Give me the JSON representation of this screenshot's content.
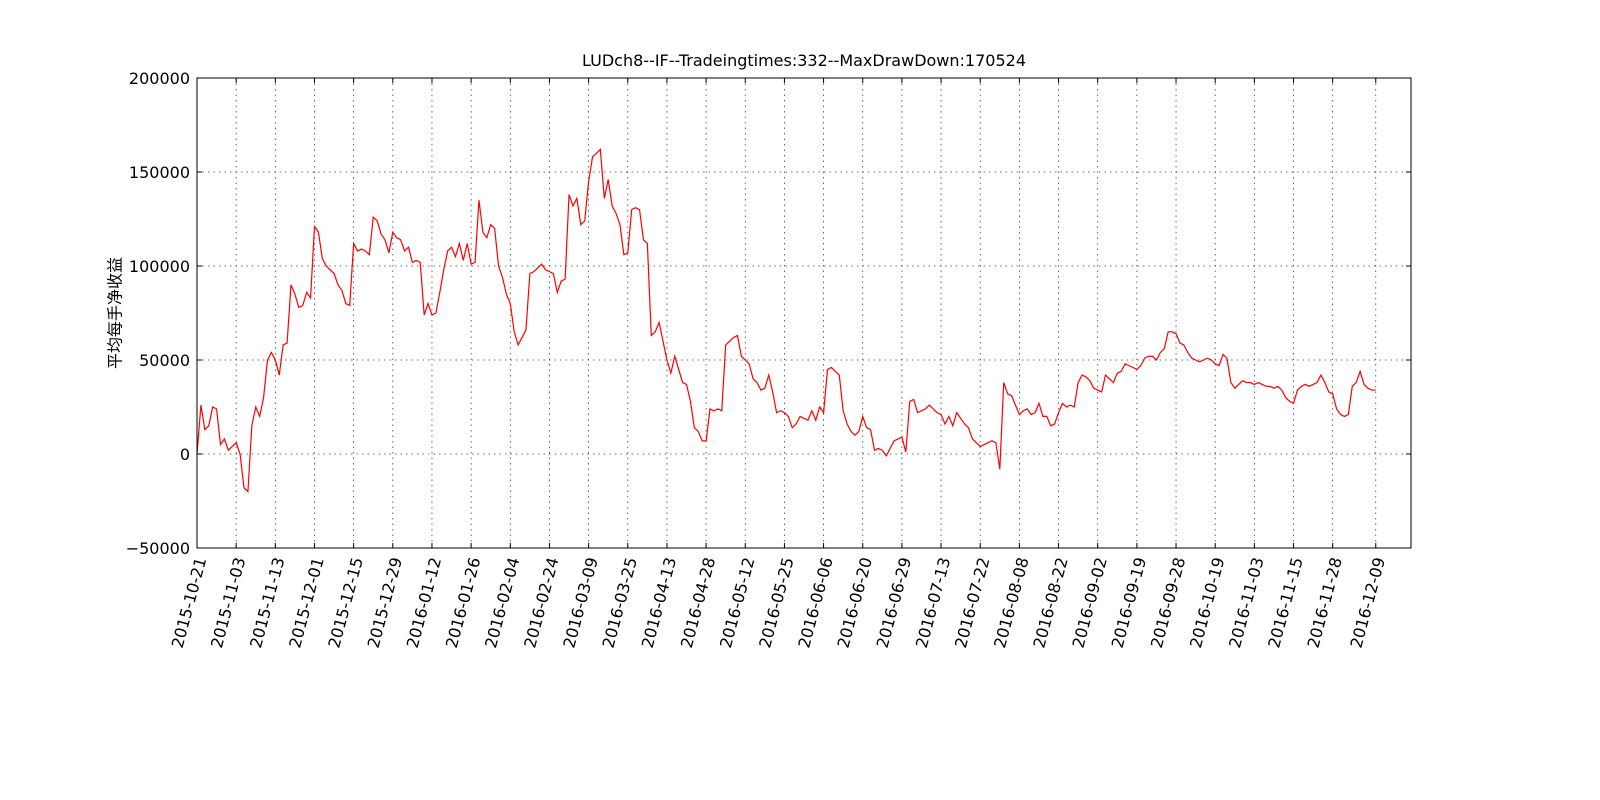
{
  "chart_data": {
    "type": "line",
    "title": "LUDch8--IF--Tradeingtimes:332--MaxDrawDown:170524",
    "y_label": "平均每手净收益",
    "xlim": [
      0,
      310
    ],
    "ylim": [
      -50000,
      200000
    ],
    "yticks": [
      {
        "value": -50000,
        "label": "−50000"
      },
      0,
      50000,
      100000,
      150000,
      200000
    ],
    "xticks": [
      {
        "value": 0,
        "label": "2015-10-21"
      },
      {
        "value": 10,
        "label": "2015-11-03"
      },
      {
        "value": 20,
        "label": "2015-11-13"
      },
      {
        "value": 30,
        "label": "2015-12-01"
      },
      {
        "value": 40,
        "label": "2015-12-15"
      },
      {
        "value": 50,
        "label": "2015-12-29"
      },
      {
        "value": 60,
        "label": "2016-01-12"
      },
      {
        "value": 70,
        "label": "2016-01-26"
      },
      {
        "value": 80,
        "label": "2016-02-04"
      },
      {
        "value": 90,
        "label": "2016-02-24"
      },
      {
        "value": 100,
        "label": "2016-03-09"
      },
      {
        "value": 110,
        "label": "2016-03-25"
      },
      {
        "value": 120,
        "label": "2016-04-13"
      },
      {
        "value": 130,
        "label": "2016-04-28"
      },
      {
        "value": 140,
        "label": "2016-05-12"
      },
      {
        "value": 150,
        "label": "2016-05-25"
      },
      {
        "value": 160,
        "label": "2016-06-06"
      },
      {
        "value": 170,
        "label": "2016-06-20"
      },
      {
        "value": 180,
        "label": "2016-06-29"
      },
      {
        "value": 190,
        "label": "2016-07-13"
      },
      {
        "value": 200,
        "label": "2016-07-22"
      },
      {
        "value": 210,
        "label": "2016-08-08"
      },
      {
        "value": 220,
        "label": "2016-08-22"
      },
      {
        "value": 230,
        "label": "2016-09-02"
      },
      {
        "value": 240,
        "label": "2016-09-19"
      },
      {
        "value": 250,
        "label": "2016-09-28"
      },
      {
        "value": 260,
        "label": "2016-10-19"
      },
      {
        "value": 270,
        "label": "2016-11-03"
      },
      {
        "value": 280,
        "label": "2016-11-15"
      },
      {
        "value": 290,
        "label": "2016-11-28"
      },
      {
        "value": 301,
        "label": "2016-12-09"
      }
    ],
    "grid": true,
    "color": "#ff0000",
    "values": [
      0,
      26000,
      13000,
      15000,
      25000,
      24000,
      5000,
      8000,
      2000,
      4000,
      6000,
      0,
      -18000,
      -20000,
      15000,
      25000,
      20000,
      30000,
      50000,
      54000,
      50000,
      42000,
      58000,
      59000,
      90000,
      85000,
      78000,
      79000,
      86000,
      83000,
      121000,
      118000,
      104000,
      100000,
      98000,
      96000,
      90000,
      87000,
      80000,
      79000,
      112000,
      108000,
      109000,
      108000,
      106000,
      126000,
      124000,
      117000,
      114000,
      107000,
      118000,
      115000,
      114000,
      108000,
      110000,
      102000,
      103000,
      102000,
      74000,
      80000,
      74000,
      75000,
      86000,
      98000,
      108000,
      110000,
      105000,
      112000,
      103000,
      112000,
      101000,
      102000,
      135000,
      118000,
      115000,
      122000,
      120000,
      100000,
      94000,
      85000,
      80000,
      65000,
      58000,
      62000,
      66000,
      96000,
      97000,
      99000,
      101000,
      98000,
      97000,
      96000,
      86000,
      92000,
      93000,
      138000,
      132000,
      136000,
      122000,
      124000,
      145000,
      158000,
      160000,
      162000,
      136000,
      146000,
      132000,
      128000,
      122000,
      106000,
      107000,
      130000,
      131000,
      130000,
      114000,
      112000,
      63000,
      65000,
      70000,
      60000,
      50000,
      43000,
      52000,
      45000,
      38000,
      37000,
      28000,
      14000,
      12000,
      7000,
      7000,
      24000,
      23000,
      24000,
      23000,
      58000,
      60000,
      62000,
      63000,
      52000,
      50000,
      48000,
      40000,
      38000,
      34000,
      35000,
      42000,
      33000,
      22000,
      23000,
      22000,
      20000,
      14000,
      16000,
      20000,
      19000,
      18000,
      23000,
      18000,
      25000,
      22000,
      45000,
      46000,
      44000,
      42000,
      23000,
      16000,
      12000,
      10000,
      12000,
      20000,
      14000,
      13000,
      2000,
      3000,
      2000,
      -1000,
      3000,
      7000,
      8000,
      9000,
      1000,
      28000,
      29000,
      22000,
      23000,
      24000,
      26000,
      24000,
      22000,
      21000,
      16000,
      20000,
      15000,
      22000,
      19000,
      16000,
      14000,
      8000,
      6000,
      4000,
      5000,
      6000,
      7000,
      6000,
      -8000,
      38000,
      32000,
      31000,
      26000,
      21000,
      23000,
      24000,
      21000,
      22000,
      27000,
      20000,
      20000,
      15000,
      16000,
      22000,
      27000,
      25000,
      26000,
      25000,
      38000,
      42000,
      41000,
      39000,
      35000,
      34000,
      33000,
      42000,
      40000,
      38000,
      43000,
      44000,
      48000,
      47000,
      46000,
      45000,
      47000,
      51000,
      52000,
      52000,
      50000,
      54000,
      56000,
      65000,
      65000,
      64000,
      59000,
      58000,
      54000,
      51000,
      50000,
      49000,
      50000,
      51000,
      50000,
      48000,
      47000,
      53000,
      51000,
      38000,
      35000,
      37000,
      39000,
      38000,
      38000,
      37000,
      38000,
      37000,
      36000,
      36000,
      35000,
      36000,
      34000,
      30000,
      28000,
      27000,
      34000,
      36000,
      37000,
      36000,
      37000,
      38000,
      42000,
      38000,
      33000,
      32000,
      24000,
      21000,
      20000,
      21000,
      36000,
      38000,
      44000,
      37000,
      35000,
      34000,
      34000
    ]
  }
}
